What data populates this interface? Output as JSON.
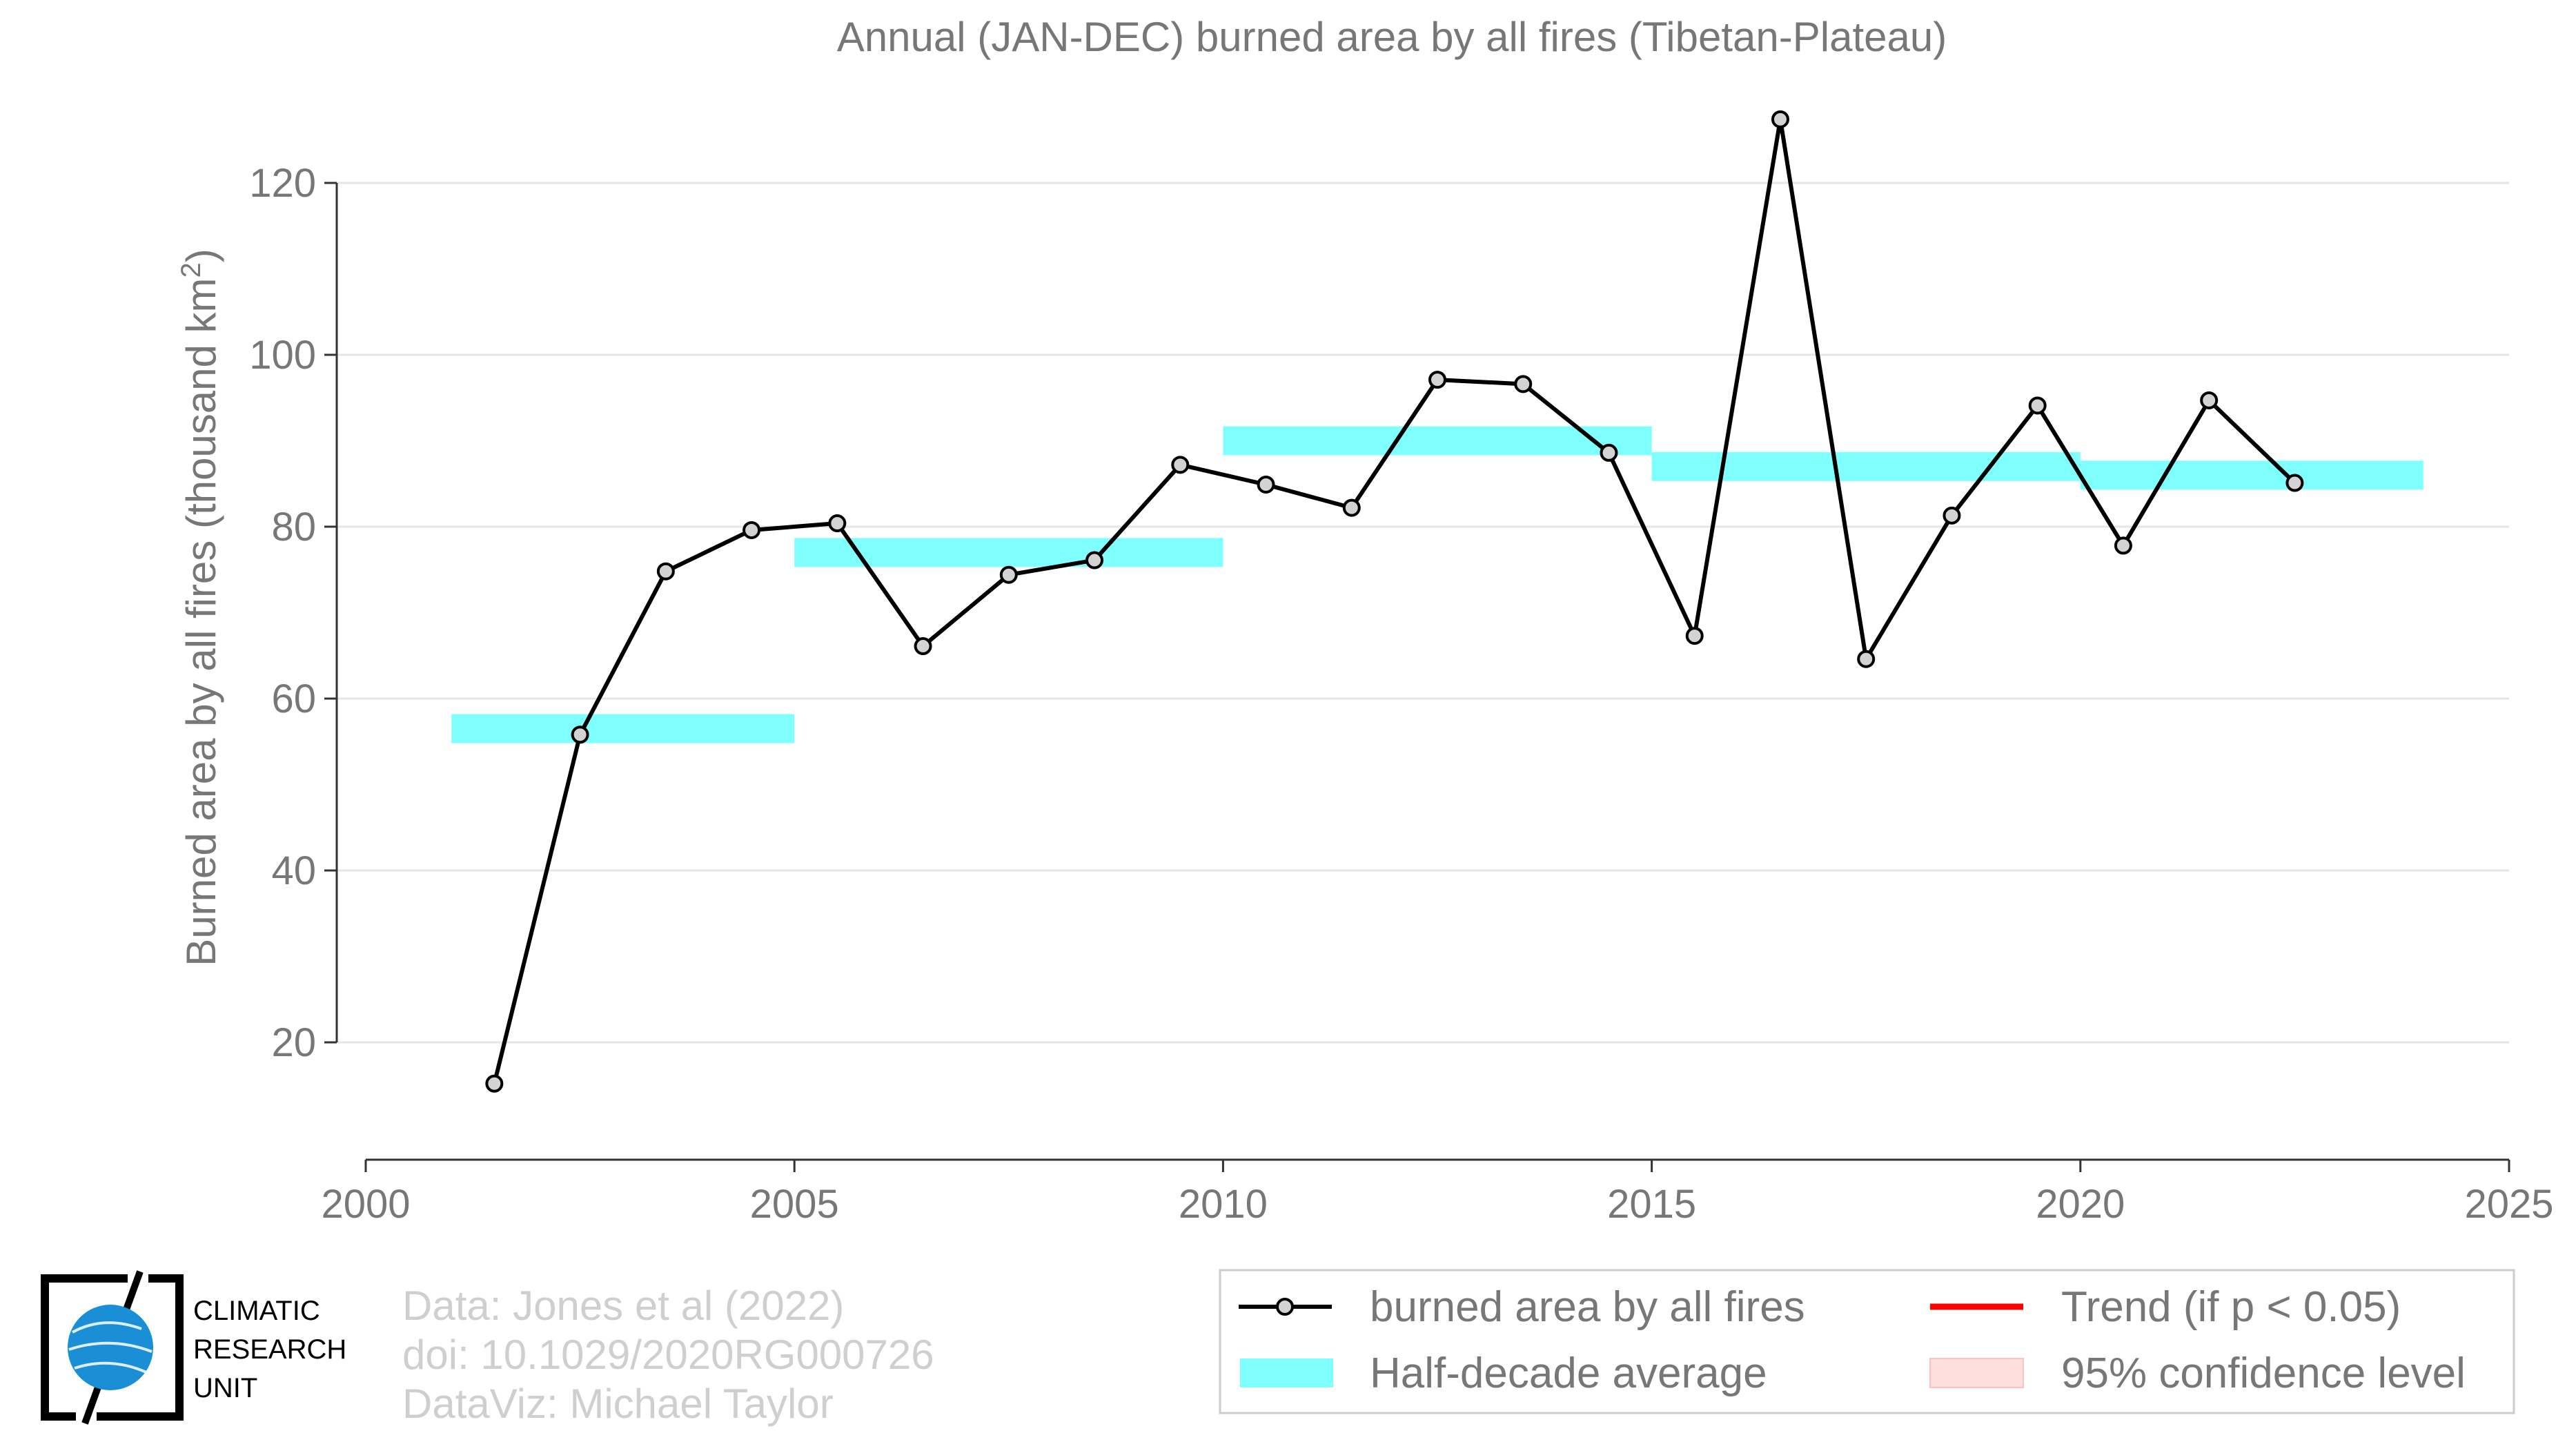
{
  "chart_data": {
    "type": "line",
    "title": "Annual (JAN-DEC) burned area by all fires (Tibetan-Plateau)",
    "ylabel": "Burned area by all fires (thousand km",
    "ylabel_sup": "2",
    "ylabel_end": ")",
    "xlim": [
      2000,
      2025
    ],
    "ylim": [
      6,
      132
    ],
    "x_ticks": [
      2000,
      2005,
      2010,
      2015,
      2020,
      2025
    ],
    "y_ticks": [
      20,
      40,
      60,
      80,
      100,
      120
    ],
    "grid": true,
    "series": [
      {
        "name": "burned area by all fires",
        "color": "#000000",
        "x": [
          2001.5,
          2002.5,
          2003.5,
          2004.5,
          2005.5,
          2006.5,
          2007.5,
          2008.5,
          2009.5,
          2010.5,
          2011.5,
          2012.5,
          2013.5,
          2014.5,
          2015.5,
          2016.5,
          2017.5,
          2018.5,
          2019.5,
          2020.5,
          2021.5,
          2022.5
        ],
        "y": [
          15.2,
          55.8,
          74.8,
          79.6,
          80.4,
          66.1,
          74.4,
          76.1,
          87.2,
          84.9,
          82.2,
          97.1,
          96.6,
          88.6,
          67.3,
          127.4,
          64.6,
          81.3,
          94.1,
          77.8,
          94.7,
          85.1
        ]
      }
    ],
    "half_decade_average": {
      "name": "Half-decade average",
      "color": "#80ffff",
      "segments": [
        {
          "x": [
            2001,
            2005
          ],
          "y": 56.5
        },
        {
          "x": [
            2005,
            2010
          ],
          "y": 77.0
        },
        {
          "x": [
            2010,
            2015
          ],
          "y": 90.0
        },
        {
          "x": [
            2015,
            2020
          ],
          "y": 87.0
        },
        {
          "x": [
            2020,
            2024
          ],
          "y": 86.0
        }
      ]
    },
    "legend": {
      "placement": "bottom-right",
      "items": [
        {
          "label": "burned area by all fires",
          "kind": "line-marker",
          "color": "#000000"
        },
        {
          "label": "Trend (if p < 0.05)",
          "kind": "line",
          "color": "#ff0000"
        },
        {
          "label": "Half-decade average",
          "kind": "band",
          "color": "#80ffff"
        },
        {
          "label": "95% confidence level",
          "kind": "band",
          "color": "#ffdede"
        }
      ]
    }
  },
  "credits": {
    "line1": "Data: Jones et al (2022)",
    "line2": "doi: 10.1029/2020RG000726",
    "line3": "DataViz: Michael Taylor"
  },
  "logo": {
    "line1": "CLIMATIC",
    "line2": "RESEARCH",
    "line3": "UNIT",
    "globe_color": "#1a8fd6"
  }
}
